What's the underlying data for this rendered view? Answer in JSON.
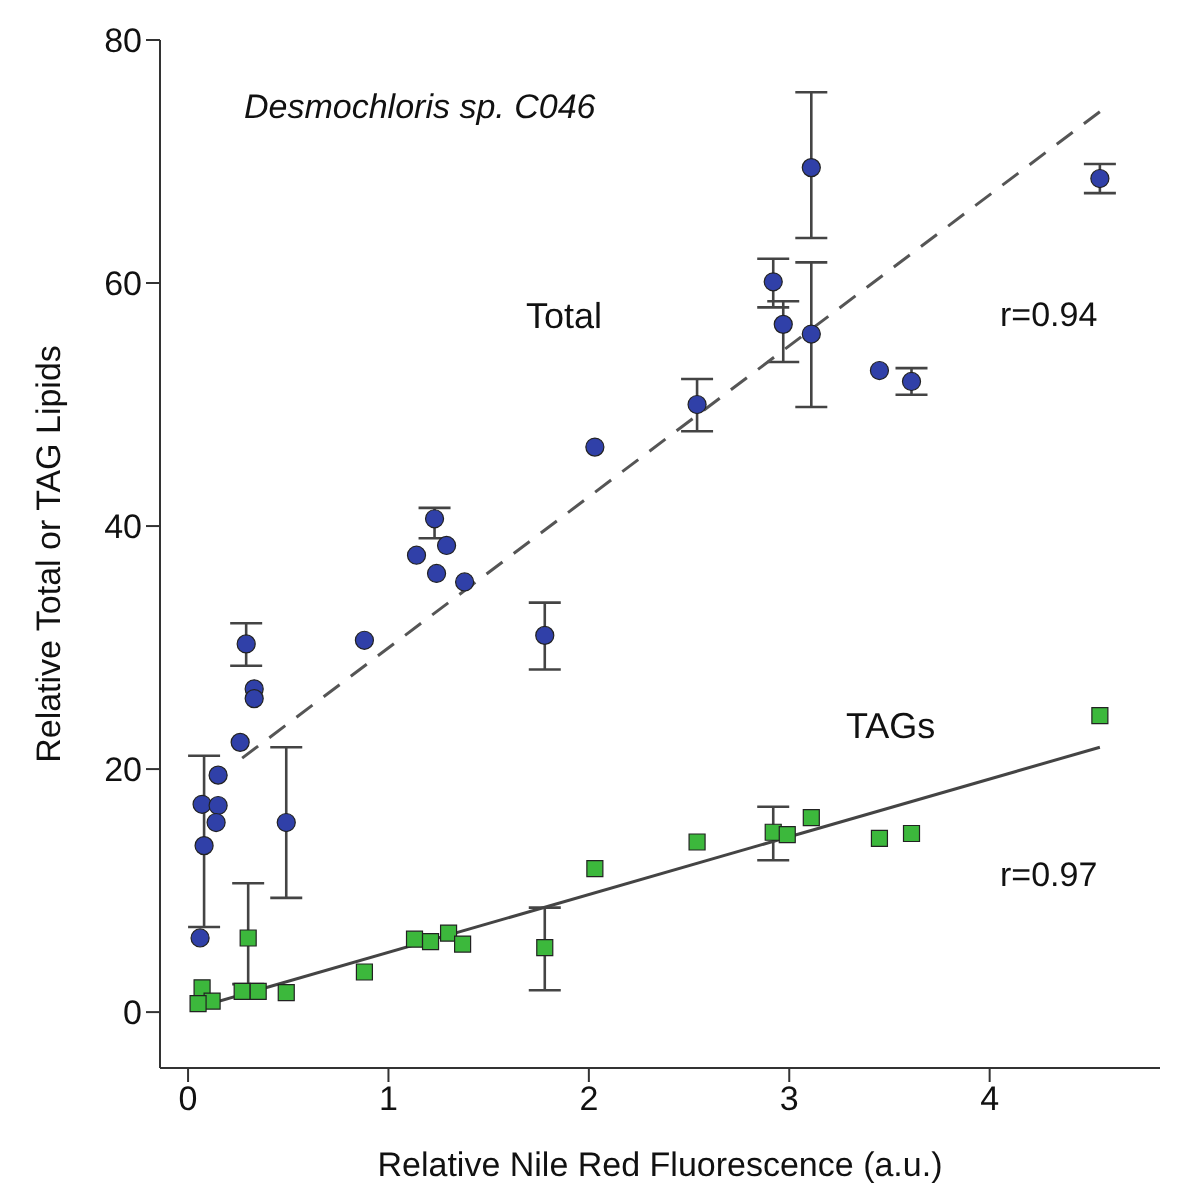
{
  "chart_data": {
    "type": "scatter",
    "title": "Desmochloris sp. C046",
    "xlabel": "Relative Nile Red Fluorescence (a.u.)",
    "ylabel": "Relative Total or TAG Lipids",
    "xlim": [
      -0.14,
      4.85
    ],
    "ylim": [
      -4.6,
      80
    ],
    "xticks": [
      0,
      1,
      2,
      3,
      4
    ],
    "yticks": [
      0,
      20,
      40,
      60,
      80
    ],
    "grid": false,
    "legend": false,
    "annotations": [
      "r=0.94",
      "r=0.97"
    ],
    "series": [
      {
        "name": "Total",
        "marker": "circle",
        "color": "#3040a8",
        "x": [
          2.03,
          1.23,
          1.14,
          1.29,
          1.24,
          1.38,
          3.11,
          2.92,
          2.97,
          3.11,
          2.54,
          3.45,
          3.61,
          4.55,
          0.29,
          0.33,
          0.33,
          0.88,
          1.78,
          0.26,
          0.15,
          0.07,
          0.15,
          0.14,
          0.08,
          0.49,
          0.06
        ],
        "values": [
          46.5,
          40.6,
          37.6,
          38.4,
          36.1,
          35.4,
          69.5,
          60.1,
          56.6,
          55.8,
          50.0,
          52.8,
          51.9,
          68.6,
          30.3,
          26.6,
          25.8,
          30.6,
          31.0,
          22.2,
          19.5,
          17.1,
          17.0,
          15.6,
          13.7,
          15.6,
          6.1
        ],
        "errors": [
          null,
          [
            39,
            41.5
          ],
          null,
          null,
          null,
          null,
          [
            63.7,
            75.7
          ],
          [
            58,
            62
          ],
          [
            53.5,
            58.5
          ],
          [
            49.8,
            61.7
          ],
          [
            47.8,
            52.1
          ],
          null,
          [
            50.8,
            53
          ],
          [
            67.4,
            69.8
          ],
          [
            28.5,
            32
          ],
          null,
          null,
          null,
          [
            28.2,
            33.7
          ],
          null,
          null,
          null,
          null,
          null,
          [
            7,
            21.1
          ],
          [
            9.4,
            21.8
          ],
          null
        ]
      },
      {
        "name": "TAGs",
        "marker": "square",
        "color": "#3cb83c",
        "x": [
          0.3,
          0.07,
          0.12,
          0.05,
          0.27,
          0.35,
          0.49,
          0.88,
          1.13,
          1.21,
          1.3,
          1.37,
          1.78,
          2.03,
          2.54,
          2.92,
          2.99,
          3.11,
          3.45,
          3.61,
          4.55
        ],
        "values": [
          6.1,
          2.0,
          0.9,
          0.7,
          1.7,
          1.7,
          1.6,
          3.3,
          6.0,
          5.8,
          6.5,
          5.6,
          5.3,
          11.8,
          14.0,
          14.8,
          14.6,
          16.0,
          14.3,
          14.7,
          24.4
        ],
        "errors": [
          [
            2.3,
            10.6
          ],
          null,
          null,
          null,
          null,
          null,
          null,
          null,
          null,
          null,
          null,
          null,
          [
            1.8,
            8.6
          ],
          null,
          null,
          [
            12.5,
            16.9
          ],
          null,
          null,
          null,
          null,
          null
        ]
      },
      {
        "type": "line",
        "line_style": "dashed",
        "color": "#555555",
        "x": [
          0.27,
          4.55
        ],
        "values": [
          20.9,
          74.1
        ]
      },
      {
        "type": "line",
        "line_style": "solid",
        "color": "#444444",
        "x": [
          0.05,
          4.55
        ],
        "values": [
          0.4,
          21.8
        ]
      }
    ]
  }
}
